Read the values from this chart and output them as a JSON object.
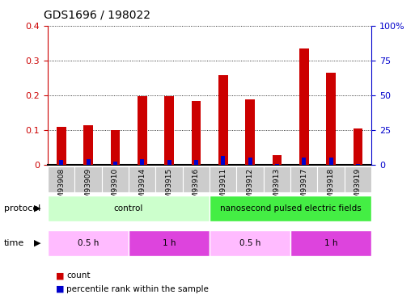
{
  "title": "GDS1696 / 198022",
  "samples": [
    "GSM93908",
    "GSM93909",
    "GSM93910",
    "GSM93914",
    "GSM93915",
    "GSM93916",
    "GSM93911",
    "GSM93912",
    "GSM93913",
    "GSM93917",
    "GSM93918",
    "GSM93919"
  ],
  "count_values": [
    0.11,
    0.115,
    0.1,
    0.197,
    0.198,
    0.183,
    0.258,
    0.188,
    0.028,
    0.335,
    0.265,
    0.105
  ],
  "percentile_values": [
    0.015,
    0.018,
    0.011,
    0.016,
    0.014,
    0.014,
    0.026,
    0.021,
    0.003,
    0.021,
    0.021,
    0.003
  ],
  "count_color": "#cc0000",
  "percentile_color": "#0000cc",
  "ylim": [
    0,
    0.4
  ],
  "y2lim": [
    0,
    100
  ],
  "yticks": [
    0,
    0.1,
    0.2,
    0.3,
    0.4
  ],
  "y2ticks": [
    0,
    25,
    50,
    75,
    100
  ],
  "ytick_labels": [
    "0",
    "0.1",
    "0.2",
    "0.3",
    "0.4"
  ],
  "y2tick_labels": [
    "0",
    "25",
    "50",
    "75",
    "100%"
  ],
  "protocol_labels": [
    {
      "text": "control",
      "start": 0,
      "end": 6,
      "color": "#ccffcc"
    },
    {
      "text": "nanosecond pulsed electric fields",
      "start": 6,
      "end": 12,
      "color": "#44ee44"
    }
  ],
  "time_labels": [
    {
      "text": "0.5 h",
      "start": 0,
      "end": 3,
      "color": "#ffbbff"
    },
    {
      "text": "1 h",
      "start": 3,
      "end": 6,
      "color": "#dd44dd"
    },
    {
      "text": "0.5 h",
      "start": 6,
      "end": 9,
      "color": "#ffbbff"
    },
    {
      "text": "1 h",
      "start": 9,
      "end": 12,
      "color": "#dd44dd"
    }
  ],
  "legend_items": [
    {
      "label": "count",
      "color": "#cc0000"
    },
    {
      "label": "percentile rank within the sample",
      "color": "#0000cc"
    }
  ],
  "background_color": "#ffffff",
  "tick_label_color_left": "#cc0000",
  "tick_label_color_right": "#0000cc",
  "count_bar_width": 0.35,
  "pct_bar_width": 0.15,
  "sample_bg_color": "#cccccc",
  "border_color": "#888888"
}
